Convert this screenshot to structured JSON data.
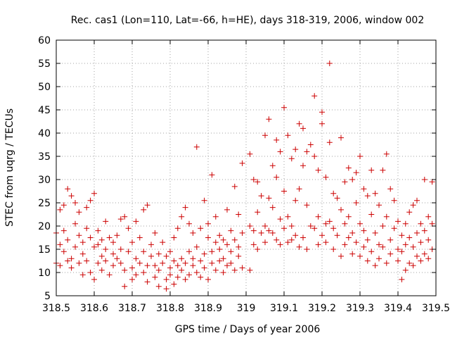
{
  "chart_data": {
    "type": "scatter",
    "title": "Rec. cas1 (Lon=110, Lat=-66, h=HE), days 318-319, 2006, window 002",
    "xlabel": "GPS time / Days of year 2006",
    "ylabel": "STEC from uqrg / TECUs",
    "xlim": [
      318.5,
      319.5
    ],
    "ylim": [
      5,
      60
    ],
    "x_ticks": [
      "318.5",
      "318.6",
      "318.7",
      "318.8",
      "318.9",
      "319",
      "319.1",
      "319.2",
      "319.3",
      "319.4",
      "319.5"
    ],
    "y_ticks": [
      "5",
      "10",
      "15",
      "20",
      "25",
      "30",
      "35",
      "40",
      "45",
      "50",
      "55",
      "60"
    ],
    "grid": true,
    "marker": "plus",
    "color": "#cc0000",
    "series": [
      {
        "points": [
          [
            318.5,
            12.0
          ],
          [
            318.5,
            18.5
          ],
          [
            318.51,
            16.0
          ],
          [
            318.51,
            23.5
          ],
          [
            318.51,
            11.5
          ],
          [
            318.52,
            14.5
          ],
          [
            318.52,
            19.0
          ],
          [
            318.52,
            24.5
          ],
          [
            318.53,
            12.5
          ],
          [
            318.53,
            17.0
          ],
          [
            318.53,
            28.0
          ],
          [
            318.54,
            13.0
          ],
          [
            318.54,
            26.5
          ],
          [
            318.54,
            11.0
          ],
          [
            318.55,
            15.5
          ],
          [
            318.55,
            25.0
          ],
          [
            318.55,
            20.5
          ],
          [
            318.56,
            12.0
          ],
          [
            318.56,
            18.0
          ],
          [
            318.56,
            23.0
          ],
          [
            318.57,
            14.0
          ],
          [
            318.57,
            16.5
          ],
          [
            318.57,
            9.5
          ],
          [
            318.58,
            24.0
          ],
          [
            318.58,
            19.5
          ],
          [
            318.58,
            12.5
          ],
          [
            318.59,
            17.5
          ],
          [
            318.59,
            10.0
          ],
          [
            318.59,
            25.5
          ],
          [
            318.6,
            27.0
          ],
          [
            318.6,
            15.5
          ],
          [
            318.6,
            8.5
          ],
          [
            318.61,
            16.0
          ],
          [
            318.61,
            12.0
          ],
          [
            318.61,
            19.0
          ],
          [
            318.62,
            13.5
          ],
          [
            318.62,
            17.0
          ],
          [
            318.62,
            10.5
          ],
          [
            318.63,
            15.0
          ],
          [
            318.63,
            21.0
          ],
          [
            318.63,
            12.5
          ],
          [
            318.64,
            17.5
          ],
          [
            318.64,
            9.5
          ],
          [
            318.65,
            14.0
          ],
          [
            318.65,
            16.5
          ],
          [
            318.65,
            11.5
          ],
          [
            318.66,
            13.0
          ],
          [
            318.66,
            18.0
          ],
          [
            318.67,
            12.0
          ],
          [
            318.67,
            21.5
          ],
          [
            318.67,
            15.0
          ],
          [
            318.68,
            10.5
          ],
          [
            318.68,
            22.0
          ],
          [
            318.68,
            7.0
          ],
          [
            318.69,
            14.5
          ],
          [
            318.69,
            19.5
          ],
          [
            318.7,
            11.0
          ],
          [
            318.7,
            16.5
          ],
          [
            318.7,
            8.5
          ],
          [
            318.71,
            13.0
          ],
          [
            318.71,
            21.0
          ],
          [
            318.71,
            9.5
          ],
          [
            318.72,
            12.0
          ],
          [
            318.72,
            17.5
          ],
          [
            318.73,
            10.0
          ],
          [
            318.73,
            23.5
          ],
          [
            318.73,
            14.5
          ],
          [
            318.74,
            11.5
          ],
          [
            318.74,
            24.5
          ],
          [
            318.74,
            8.0
          ],
          [
            318.75,
            13.5
          ],
          [
            318.75,
            16.0
          ],
          [
            318.76,
            9.0
          ],
          [
            318.76,
            18.5
          ],
          [
            318.76,
            11.5
          ],
          [
            318.77,
            10.5
          ],
          [
            318.77,
            14.0
          ],
          [
            318.77,
            7.0
          ],
          [
            318.78,
            12.0
          ],
          [
            318.78,
            16.5
          ],
          [
            318.79,
            8.5
          ],
          [
            318.79,
            13.5
          ],
          [
            318.79,
            6.5
          ],
          [
            318.8,
            11.0
          ],
          [
            318.8,
            14.5
          ],
          [
            318.8,
            9.5
          ],
          [
            318.81,
            12.5
          ],
          [
            318.81,
            17.5
          ],
          [
            318.81,
            7.5
          ],
          [
            318.82,
            11.5
          ],
          [
            318.82,
            19.5
          ],
          [
            318.82,
            9.0
          ],
          [
            318.83,
            13.0
          ],
          [
            318.83,
            22.0
          ],
          [
            318.83,
            10.5
          ],
          [
            318.84,
            12.0
          ],
          [
            318.84,
            24.0
          ],
          [
            318.84,
            8.5
          ],
          [
            318.85,
            14.5
          ],
          [
            318.85,
            20.5
          ],
          [
            318.85,
            9.5
          ],
          [
            318.86,
            13.0
          ],
          [
            318.86,
            18.5
          ],
          [
            318.86,
            11.5
          ],
          [
            318.87,
            37.0
          ],
          [
            318.87,
            15.5
          ],
          [
            318.87,
            10.0
          ],
          [
            318.88,
            12.5
          ],
          [
            318.88,
            19.5
          ],
          [
            318.88,
            9.0
          ],
          [
            318.89,
            25.5
          ],
          [
            318.89,
            14.0
          ],
          [
            318.89,
            11.0
          ],
          [
            318.9,
            17.5
          ],
          [
            318.9,
            20.5
          ],
          [
            318.9,
            8.5
          ],
          [
            318.91,
            31.0
          ],
          [
            318.91,
            14.5
          ],
          [
            318.91,
            12.0
          ],
          [
            318.92,
            22.0
          ],
          [
            318.92,
            16.5
          ],
          [
            318.92,
            10.5
          ],
          [
            318.93,
            15.0
          ],
          [
            318.93,
            18.0
          ],
          [
            318.93,
            12.5
          ],
          [
            318.94,
            17.0
          ],
          [
            318.94,
            13.0
          ],
          [
            318.94,
            10.0
          ],
          [
            318.95,
            23.5
          ],
          [
            318.95,
            16.0
          ],
          [
            318.95,
            11.5
          ],
          [
            318.96,
            14.5
          ],
          [
            318.96,
            19.0
          ],
          [
            318.96,
            12.0
          ],
          [
            318.97,
            28.5
          ],
          [
            318.97,
            17.0
          ],
          [
            318.97,
            10.5
          ],
          [
            318.98,
            22.5
          ],
          [
            318.98,
            15.5
          ],
          [
            318.98,
            13.5
          ],
          [
            318.99,
            33.5
          ],
          [
            318.99,
            18.5
          ],
          [
            318.99,
            11.0
          ],
          [
            319.01,
            35.5
          ],
          [
            319.01,
            20.0
          ],
          [
            319.01,
            10.5
          ],
          [
            319.02,
            30.0
          ],
          [
            319.02,
            19.0
          ],
          [
            319.02,
            16.0
          ],
          [
            319.03,
            23.0
          ],
          [
            319.03,
            29.5
          ],
          [
            319.03,
            15.0
          ],
          [
            319.04,
            26.5
          ],
          [
            319.04,
            18.5
          ],
          [
            319.05,
            39.5
          ],
          [
            319.05,
            20.0
          ],
          [
            319.05,
            16.5
          ],
          [
            319.06,
            43.0
          ],
          [
            319.06,
            26.0
          ],
          [
            319.06,
            19.0
          ],
          [
            319.07,
            33.0
          ],
          [
            319.07,
            24.0
          ],
          [
            319.07,
            18.5
          ],
          [
            319.08,
            38.5
          ],
          [
            319.08,
            30.5
          ],
          [
            319.08,
            17.0
          ],
          [
            319.09,
            36.0
          ],
          [
            319.09,
            21.5
          ],
          [
            319.09,
            16.0
          ],
          [
            319.1,
            45.5
          ],
          [
            319.1,
            27.5
          ],
          [
            319.1,
            19.5
          ],
          [
            319.11,
            39.5
          ],
          [
            319.11,
            22.0
          ],
          [
            319.11,
            16.5
          ],
          [
            319.12,
            34.5
          ],
          [
            319.12,
            20.0
          ],
          [
            319.12,
            17.0
          ],
          [
            319.13,
            36.5
          ],
          [
            319.13,
            25.5
          ],
          [
            319.13,
            18.0
          ],
          [
            319.14,
            42.0
          ],
          [
            319.14,
            28.0
          ],
          [
            319.14,
            15.5
          ],
          [
            319.15,
            41.0
          ],
          [
            319.15,
            33.0
          ],
          [
            319.15,
            17.5
          ],
          [
            319.16,
            36.0
          ],
          [
            319.16,
            24.5
          ],
          [
            319.16,
            15.0
          ],
          [
            319.17,
            37.5
          ],
          [
            319.17,
            20.0
          ],
          [
            319.18,
            48.0
          ],
          [
            319.18,
            35.0
          ],
          [
            319.18,
            19.5
          ],
          [
            319.19,
            32.0
          ],
          [
            319.19,
            22.0
          ],
          [
            319.19,
            16.0
          ],
          [
            319.2,
            44.5
          ],
          [
            319.2,
            42.0
          ],
          [
            319.2,
            18.0
          ],
          [
            319.21,
            30.5
          ],
          [
            319.21,
            20.5
          ],
          [
            319.21,
            16.5
          ],
          [
            319.22,
            55.0
          ],
          [
            319.22,
            38.0
          ],
          [
            319.22,
            21.0
          ],
          [
            319.23,
            27.0
          ],
          [
            319.23,
            19.5
          ],
          [
            319.23,
            15.0
          ],
          [
            319.24,
            26.0
          ],
          [
            319.24,
            18.0
          ],
          [
            319.25,
            39.0
          ],
          [
            319.25,
            23.5
          ],
          [
            319.25,
            13.5
          ],
          [
            319.26,
            29.5
          ],
          [
            319.26,
            20.5
          ],
          [
            319.26,
            16.0
          ],
          [
            319.27,
            32.5
          ],
          [
            319.27,
            22.0
          ],
          [
            319.27,
            17.5
          ],
          [
            319.28,
            30.0
          ],
          [
            319.28,
            18.5
          ],
          [
            319.28,
            14.0
          ],
          [
            319.29,
            31.5
          ],
          [
            319.29,
            25.0
          ],
          [
            319.29,
            16.5
          ],
          [
            319.3,
            35.0
          ],
          [
            319.3,
            20.5
          ],
          [
            319.3,
            13.5
          ],
          [
            319.31,
            28.0
          ],
          [
            319.31,
            19.0
          ],
          [
            319.31,
            15.5
          ],
          [
            319.32,
            26.5
          ],
          [
            319.32,
            17.0
          ],
          [
            319.32,
            12.5
          ],
          [
            319.33,
            32.0
          ],
          [
            319.33,
            22.5
          ],
          [
            319.33,
            14.5
          ],
          [
            319.34,
            27.0
          ],
          [
            319.34,
            18.5
          ],
          [
            319.34,
            11.5
          ],
          [
            319.35,
            24.5
          ],
          [
            319.35,
            16.0
          ],
          [
            319.35,
            13.0
          ],
          [
            319.36,
            32.0
          ],
          [
            319.36,
            20.0
          ],
          [
            319.36,
            15.5
          ],
          [
            319.37,
            35.5
          ],
          [
            319.37,
            22.0
          ],
          [
            319.37,
            12.0
          ],
          [
            319.38,
            28.0
          ],
          [
            319.38,
            17.0
          ],
          [
            319.38,
            14.0
          ],
          [
            319.39,
            25.5
          ],
          [
            319.39,
            19.5
          ],
          [
            319.4,
            21.0
          ],
          [
            319.4,
            15.0
          ],
          [
            319.4,
            12.5
          ],
          [
            319.41,
            18.0
          ],
          [
            319.41,
            8.5
          ],
          [
            319.41,
            14.5
          ],
          [
            319.42,
            20.5
          ],
          [
            319.42,
            16.0
          ],
          [
            319.42,
            10.5
          ],
          [
            319.43,
            23.0
          ],
          [
            319.43,
            17.5
          ],
          [
            319.43,
            12.0
          ],
          [
            319.44,
            24.5
          ],
          [
            319.44,
            15.5
          ],
          [
            319.44,
            11.5
          ],
          [
            319.45,
            25.5
          ],
          [
            319.45,
            18.5
          ],
          [
            319.45,
            13.5
          ],
          [
            319.46,
            20.5
          ],
          [
            319.46,
            16.5
          ],
          [
            319.46,
            12.5
          ],
          [
            319.47,
            30.0
          ],
          [
            319.47,
            19.0
          ],
          [
            319.47,
            14.0
          ],
          [
            319.48,
            22.0
          ],
          [
            319.48,
            17.0
          ],
          [
            319.48,
            13.0
          ],
          [
            319.49,
            29.5
          ],
          [
            319.49,
            20.5
          ],
          [
            319.49,
            15.0
          ]
        ]
      }
    ]
  }
}
